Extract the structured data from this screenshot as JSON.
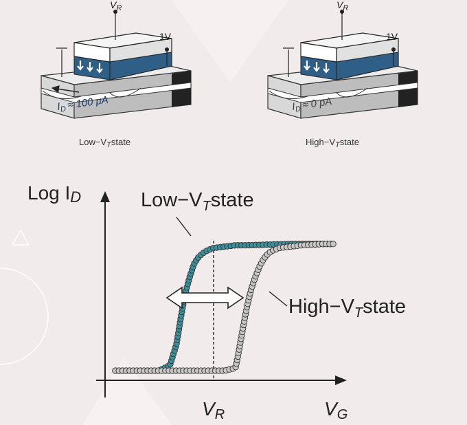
{
  "devices": [
    {
      "gate_label": "V",
      "gate_sub": "R",
      "drain_label": "1V",
      "current_text": "≈ 100 μA",
      "current_sym": "I",
      "current_sub": "D",
      "caption_main": "Low−V",
      "caption_sub": "T",
      "caption_tail": "state"
    },
    {
      "gate_label": "V",
      "gate_sub": "R",
      "drain_label": "1V",
      "current_text": "≈ 0 pA",
      "current_sym": "I",
      "current_sub": "D",
      "caption_main": "High−V",
      "caption_sub": "T",
      "caption_tail": "state"
    }
  ],
  "graph": {
    "y_axis_label": "Log I",
    "y_axis_sub": "D",
    "x_axis_label": "V",
    "x_axis_sub": "G",
    "vr_label": "V",
    "vr_sub": "R",
    "low_label_main": "Low−V",
    "low_label_sub": "T",
    "low_label_tail": "state",
    "high_label_main": "High−V",
    "high_label_sub": "T",
    "high_label_tail": "state"
  },
  "chart_data": {
    "type": "scatter",
    "xlabel": "VG",
    "ylabel": "Log ID",
    "xlim": [
      0,
      1
    ],
    "ylim": [
      0,
      1
    ],
    "series": [
      {
        "name": "Low-VT state",
        "color": "#3d8f9c",
        "x": [
          0.0,
          0.05,
          0.1,
          0.15,
          0.2,
          0.25,
          0.28,
          0.3,
          0.32,
          0.34,
          0.36,
          0.38,
          0.4,
          0.42,
          0.45,
          0.5,
          0.55,
          0.6,
          0.7,
          0.8,
          0.9,
          1.0
        ],
        "y": [
          0.0,
          0.0,
          0.0,
          0.0,
          0.0,
          0.04,
          0.2,
          0.4,
          0.58,
          0.7,
          0.8,
          0.85,
          0.88,
          0.9,
          0.92,
          0.93,
          0.94,
          0.94,
          0.945,
          0.95,
          0.95,
          0.95
        ]
      },
      {
        "name": "High-VT state",
        "color": "#c9c7c6",
        "x": [
          0.0,
          0.2,
          0.4,
          0.5,
          0.55,
          0.56,
          0.58,
          0.6,
          0.62,
          0.64,
          0.66,
          0.68,
          0.7,
          0.72,
          0.75,
          0.8,
          0.85,
          0.9,
          0.95,
          1.0
        ],
        "y": [
          0.0,
          0.0,
          0.0,
          0.0,
          0.02,
          0.1,
          0.28,
          0.46,
          0.6,
          0.7,
          0.78,
          0.84,
          0.88,
          0.9,
          0.92,
          0.93,
          0.94,
          0.945,
          0.95,
          0.95
        ]
      }
    ]
  }
}
